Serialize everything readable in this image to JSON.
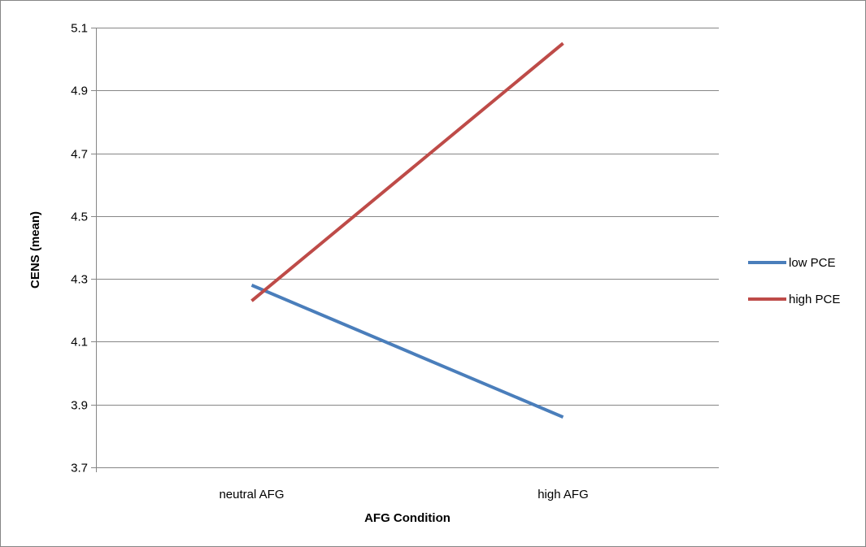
{
  "chart_data": {
    "type": "line",
    "categories": [
      "neutral AFG",
      "high AFG"
    ],
    "series": [
      {
        "name": "low PCE",
        "values": [
          4.28,
          3.86
        ],
        "color": "#4a7ebb"
      },
      {
        "name": "high PCE",
        "values": [
          4.23,
          5.05
        ],
        "color": "#be4b48"
      }
    ],
    "xlabel": "AFG Condition",
    "ylabel": "CENS (mean)",
    "ylim": [
      3.7,
      5.1
    ],
    "yticks": [
      "3.7",
      "3.9",
      "4.1",
      "4.3",
      "4.5",
      "4.7",
      "4.9",
      "5.1"
    ],
    "grid": true,
    "legend_position": "right"
  }
}
